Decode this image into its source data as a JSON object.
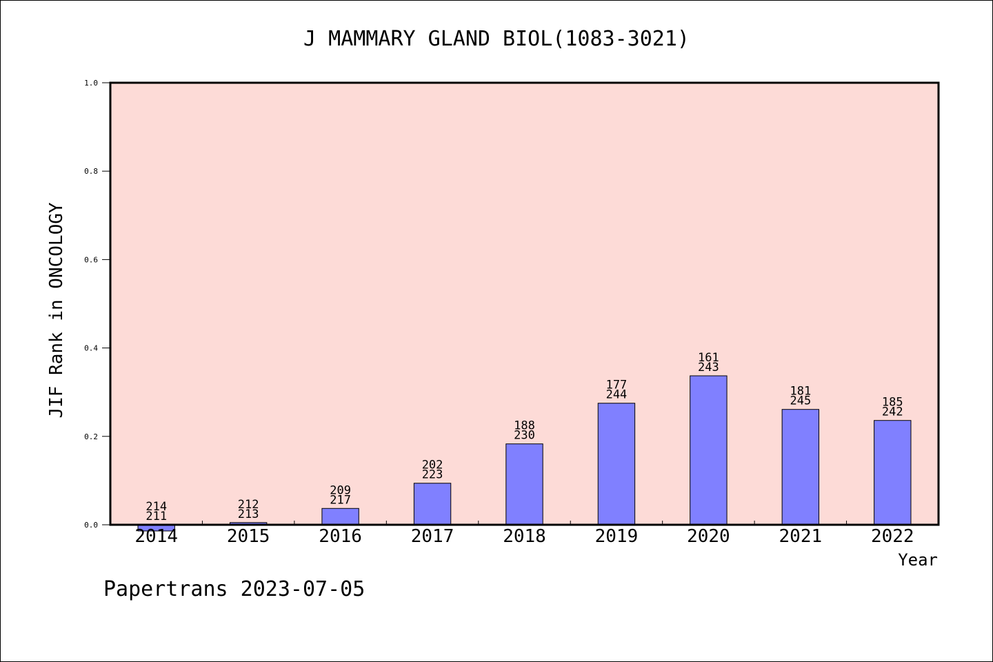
{
  "colors": {
    "plot_background": "#fddbd7",
    "bar_fill": "#8080ff",
    "bar_stroke": "#000000",
    "axis": "#000000",
    "page_background": "#ffffff"
  },
  "footer": {
    "watermark": "Papertrans 2023-07-05"
  },
  "chart_data": {
    "type": "bar",
    "title": "J MAMMARY GLAND BIOL(1083-3021)",
    "xlabel": "Year",
    "ylabel": "JIF Rank in ONCOLOGY",
    "ylim": [
      0,
      1.0
    ],
    "yticks": [
      "0.0",
      "0.2",
      "0.4",
      "0.6",
      "0.8",
      "1.0"
    ],
    "grid": false,
    "legend": "none",
    "categories": [
      "2014",
      "2015",
      "2016",
      "2017",
      "2018",
      "2019",
      "2020",
      "2021",
      "2022"
    ],
    "values": [
      -0.014,
      0.005,
      0.037,
      0.094,
      0.183,
      0.275,
      0.337,
      0.261,
      0.236
    ],
    "annotations": [
      {
        "rank": "214",
        "total": "211"
      },
      {
        "rank": "212",
        "total": "213"
      },
      {
        "rank": "209",
        "total": "217"
      },
      {
        "rank": "202",
        "total": "223"
      },
      {
        "rank": "188",
        "total": "230"
      },
      {
        "rank": "177",
        "total": "244"
      },
      {
        "rank": "161",
        "total": "243"
      },
      {
        "rank": "181",
        "total": "245"
      },
      {
        "rank": "185",
        "total": "242"
      }
    ]
  }
}
